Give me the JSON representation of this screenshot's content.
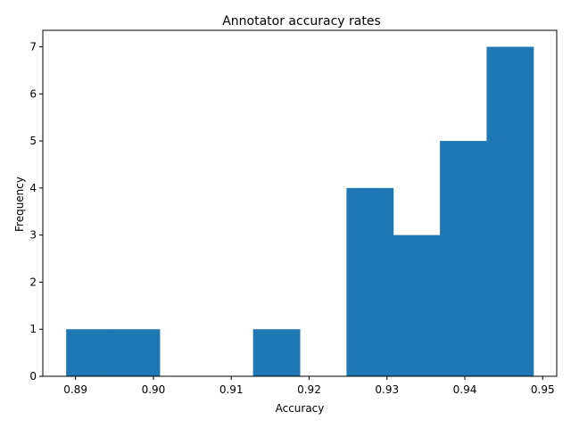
{
  "chart_data": {
    "type": "bar",
    "subtype": "histogram",
    "title": "Annotator accuracy rates",
    "xlabel": "Accuracy",
    "ylabel": "Frequency",
    "bins": [
      {
        "start": 0.8888,
        "end": 0.8948,
        "count": 1
      },
      {
        "start": 0.8948,
        "end": 0.9008,
        "count": 1
      },
      {
        "start": 0.9008,
        "end": 0.9068,
        "count": 0
      },
      {
        "start": 0.9068,
        "end": 0.9128,
        "count": 0
      },
      {
        "start": 0.9128,
        "end": 0.9188,
        "count": 1
      },
      {
        "start": 0.9188,
        "end": 0.9248,
        "count": 0
      },
      {
        "start": 0.9248,
        "end": 0.9308,
        "count": 4
      },
      {
        "start": 0.9308,
        "end": 0.9368,
        "count": 3
      },
      {
        "start": 0.9368,
        "end": 0.9428,
        "count": 5
      },
      {
        "start": 0.9428,
        "end": 0.9488,
        "count": 7
      }
    ],
    "xlim": [
      0.8858,
      0.9518
    ],
    "ylim": [
      0,
      7.35
    ],
    "xticks": [
      0.89,
      0.9,
      0.91,
      0.92,
      0.93,
      0.94,
      0.95
    ],
    "xtick_labels": [
      "0.89",
      "0.90",
      "0.91",
      "0.92",
      "0.93",
      "0.94",
      "0.95"
    ],
    "yticks": [
      0,
      1,
      2,
      3,
      4,
      5,
      6,
      7
    ],
    "ytick_labels": [
      "0",
      "1",
      "2",
      "3",
      "4",
      "5",
      "6",
      "7"
    ],
    "bar_color": "#1f77b4",
    "grid": false,
    "legend": "none"
  }
}
